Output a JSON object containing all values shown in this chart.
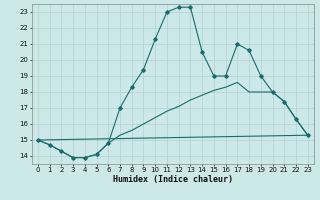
{
  "xlabel": "Humidex (Indice chaleur)",
  "bg_color": "#cce8e8",
  "grid_color": "#b8d4d4",
  "line_color": "#1a6b6b",
  "ylim": [
    13.5,
    23.5
  ],
  "xlim": [
    -0.5,
    23.5
  ],
  "yticks": [
    14,
    15,
    16,
    17,
    18,
    19,
    20,
    21,
    22,
    23
  ],
  "xticks": [
    0,
    1,
    2,
    3,
    4,
    5,
    6,
    7,
    8,
    9,
    10,
    11,
    12,
    13,
    14,
    15,
    16,
    17,
    18,
    19,
    20,
    21,
    22,
    23
  ],
  "line1_x": [
    0,
    1,
    2,
    3,
    4,
    5,
    6,
    7,
    8,
    9,
    10,
    11,
    12,
    13,
    14,
    15,
    16,
    17,
    18,
    19,
    20,
    21,
    22,
    23
  ],
  "line1_y": [
    15.0,
    14.7,
    14.3,
    13.9,
    13.9,
    14.1,
    14.8,
    17.0,
    18.3,
    19.4,
    21.3,
    23.0,
    23.3,
    23.3,
    20.5,
    19.0,
    19.0,
    21.0,
    20.6,
    19.0,
    18.0,
    17.4,
    16.3,
    15.3
  ],
  "line2_x": [
    0,
    1,
    2,
    3,
    4,
    5,
    6,
    7,
    8,
    9,
    10,
    11,
    12,
    13,
    14,
    15,
    16,
    17,
    18,
    19,
    20,
    21,
    22,
    23
  ],
  "line2_y": [
    15.0,
    14.7,
    14.3,
    13.9,
    13.9,
    14.1,
    14.8,
    15.3,
    15.6,
    16.0,
    16.4,
    16.8,
    17.1,
    17.5,
    17.8,
    18.1,
    18.3,
    18.6,
    18.0,
    18.0,
    18.0,
    17.4,
    16.3,
    15.3
  ],
  "line3_x": [
    0,
    23
  ],
  "line3_y": [
    15.0,
    15.3
  ]
}
